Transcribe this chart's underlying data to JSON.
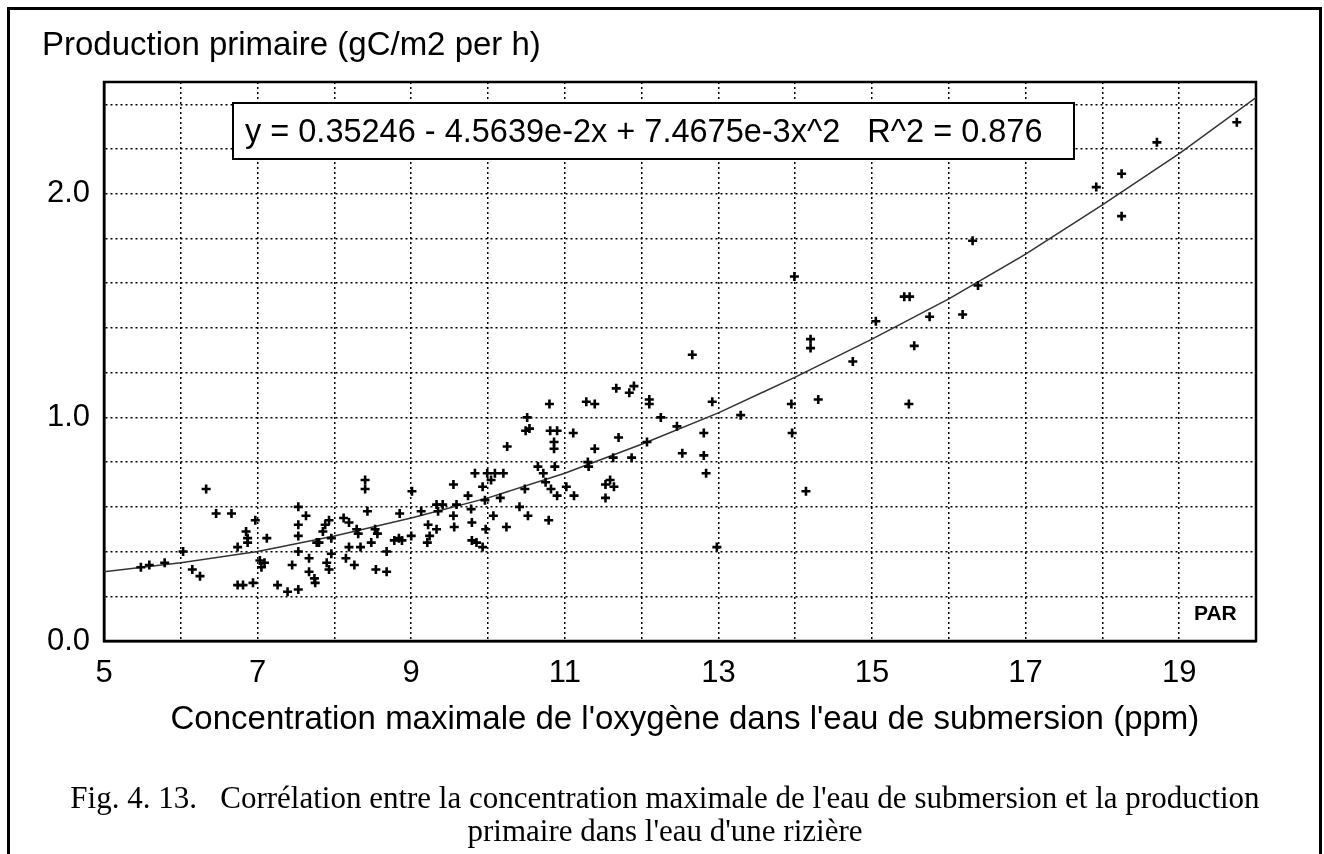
{
  "chart_data": {
    "type": "scatter",
    "ylabel": "Production primaire (gC/m2 per h)",
    "xlabel": "Concentration maximale de l'oxygène dans l'eau de submersion (ppm)",
    "annotations": [
      "y = 0.35246 - 4.5639e-2x + 7.4675e-3x^2   R^2 = 0.876",
      "PAR",
      "Fig. 4. 13.   Corrélation entre la concentration maximale de l'eau de submersion et la production primaire dans l'eau d'une rizière"
    ],
    "xlim": [
      5,
      20
    ],
    "ylim": [
      0,
      2.5
    ],
    "xticks": [
      5,
      {
        "value": 6,
        "label": null
      },
      7,
      {
        "value": 8,
        "label": null
      },
      9,
      {
        "value": 10,
        "label": null
      },
      11,
      {
        "value": 12,
        "label": null
      },
      13,
      {
        "value": 14,
        "label": null
      },
      15,
      {
        "value": 16,
        "label": null
      },
      17,
      {
        "value": 18,
        "label": null
      },
      19
    ],
    "yticks": [
      {
        "value": 0,
        "label": "0.0"
      },
      {
        "value": 0.2,
        "label": null
      },
      {
        "value": 0.4,
        "label": null
      },
      {
        "value": 0.6,
        "label": null
      },
      {
        "value": 0.8,
        "label": null
      },
      {
        "value": 1,
        "label": "1.0"
      },
      {
        "value": 1.2,
        "label": null
      },
      {
        "value": 1.4,
        "label": null
      },
      {
        "value": 1.6,
        "label": null
      },
      {
        "value": 1.8,
        "label": null
      },
      {
        "value": 2,
        "label": "2.0"
      },
      {
        "value": 2.2,
        "label": null
      },
      {
        "value": 2.4,
        "label": null
      }
    ],
    "grid": true,
    "marker": "cross",
    "series": [
      {
        "type": "scatter",
        "color": "#000000",
        "x": [
          5.48,
          5.59,
          5.79,
          6.03,
          6.15,
          6.25,
          6.33,
          6.46,
          6.66,
          6.74,
          6.74,
          6.81,
          6.85,
          6.87,
          6.87,
          6.94,
          6.97,
          7.03,
          7.05,
          7.09,
          7.12,
          7.26,
          7.39,
          7.45,
          7.53,
          7.53,
          7.53,
          7.53,
          7.53,
          7.63,
          7.67,
          7.67,
          7.74,
          7.75,
          7.77,
          7.8,
          7.85,
          7.88,
          7.9,
          7.93,
          7.93,
          7.96,
          7.96,
          8.12,
          8.15,
          8.19,
          8.19,
          8.26,
          8.29,
          8.31,
          8.34,
          8.4,
          8.4,
          8.43,
          8.48,
          8.53,
          8.54,
          8.56,
          8.68,
          8.68,
          8.78,
          8.84,
          8.85,
          8.88,
          9,
          9.01,
          9.13,
          9.21,
          9.22,
          9.24,
          9.33,
          9.33,
          9.35,
          9.41,
          9.55,
          9.55,
          9.56,
          9.59,
          9.74,
          9.78,
          9.79,
          9.79,
          9.83,
          9.85,
          9.93,
          9.93,
          9.96,
          9.97,
          9.99,
          10.04,
          10.07,
          10.09,
          10.16,
          10.2,
          10.24,
          10.25,
          10.41,
          10.48,
          10.49,
          10.51,
          10.52,
          10.54,
          10.65,
          10.72,
          10.75,
          10.79,
          10.8,
          10.81,
          10.82,
          10.86,
          10.86,
          10.87,
          10.9,
          10.9,
          11.02,
          11.11,
          11.12,
          11.28,
          11.3,
          11.31,
          11.39,
          11.39,
          11.53,
          11.53,
          11.59,
          11.63,
          11.64,
          11.67,
          11.7,
          11.84,
          11.87,
          11.9,
          12.07,
          12.1,
          12.1,
          12.25,
          12.46,
          12.53,
          12.66,
          12.81,
          12.81,
          12.84,
          12.92,
          12.98,
          13.29,
          13.95,
          13.96,
          13.99,
          14.14,
          14.2,
          14.2,
          14.3,
          14.75,
          15.05,
          15.42,
          15.49,
          15.48,
          15.55,
          15.75,
          16.18,
          16.31,
          16.38,
          17.92,
          18.25,
          18.25,
          18.71,
          19.75
        ],
        "values": [
          0.33,
          0.34,
          0.35,
          0.4,
          0.32,
          0.29,
          0.68,
          0.57,
          0.57,
          0.42,
          0.25,
          0.25,
          0.49,
          0.46,
          0.44,
          0.26,
          0.54,
          0.36,
          0.33,
          0.35,
          0.46,
          0.25,
          0.22,
          0.34,
          0.23,
          0.6,
          0.52,
          0.47,
          0.4,
          0.56,
          0.37,
          0.31,
          0.28,
          0.26,
          0.44,
          0.44,
          0.49,
          0.52,
          0.35,
          0.54,
          0.32,
          0.46,
          0.39,
          0.55,
          0.37,
          0.53,
          0.42,
          0.34,
          0.5,
          0.48,
          0.42,
          0.72,
          0.68,
          0.58,
          0.44,
          0.5,
          0.32,
          0.48,
          0.31,
          0.4,
          0.45,
          0.46,
          0.57,
          0.45,
          0.47,
          0.67,
          0.58,
          0.44,
          0.52,
          0.47,
          0.61,
          0.5,
          0.58,
          0.61,
          0.7,
          0.56,
          0.51,
          0.61,
          0.65,
          0.59,
          0.53,
          0.45,
          0.75,
          0.44,
          0.42,
          0.69,
          0.63,
          0.5,
          0.75,
          0.72,
          0.56,
          0.75,
          0.64,
          0.75,
          0.51,
          0.87,
          0.6,
          0.68,
          0.94,
          1,
          0.56,
          0.95,
          0.78,
          0.75,
          0.71,
          0.54,
          1.06,
          0.94,
          0.68,
          0.89,
          0.86,
          0.78,
          0.94,
          0.65,
          0.69,
          0.93,
          0.65,
          1.07,
          0.8,
          0.78,
          1.06,
          0.86,
          0.7,
          0.64,
          0.72,
          0.82,
          0.69,
          1.13,
          0.91,
          1.11,
          0.82,
          1.14,
          0.89,
          1.08,
          1.06,
          1,
          0.96,
          0.84,
          1.28,
          0.93,
          0.83,
          0.75,
          1.07,
          0.42,
          1.01,
          1.06,
          0.93,
          1.63,
          0.67,
          1.35,
          1.31,
          1.08,
          1.25,
          1.43,
          1.54,
          1.54,
          1.06,
          1.32,
          1.45,
          1.46,
          1.79,
          1.59,
          2.03,
          2.09,
          1.9,
          2.23,
          2.32
        ]
      },
      {
        "type": "line",
        "color": "#333333",
        "marker": "none",
        "x": [
          5,
          6,
          7,
          8,
          9,
          10,
          11,
          12,
          13,
          14,
          15,
          16,
          17,
          18,
          19,
          20
        ],
        "values": [
          0.31,
          0.35,
          0.4,
          0.47,
          0.55,
          0.64,
          0.75,
          0.88,
          1.02,
          1.18,
          1.35,
          1.53,
          1.73,
          1.95,
          2.18,
          2.43
        ]
      }
    ]
  }
}
